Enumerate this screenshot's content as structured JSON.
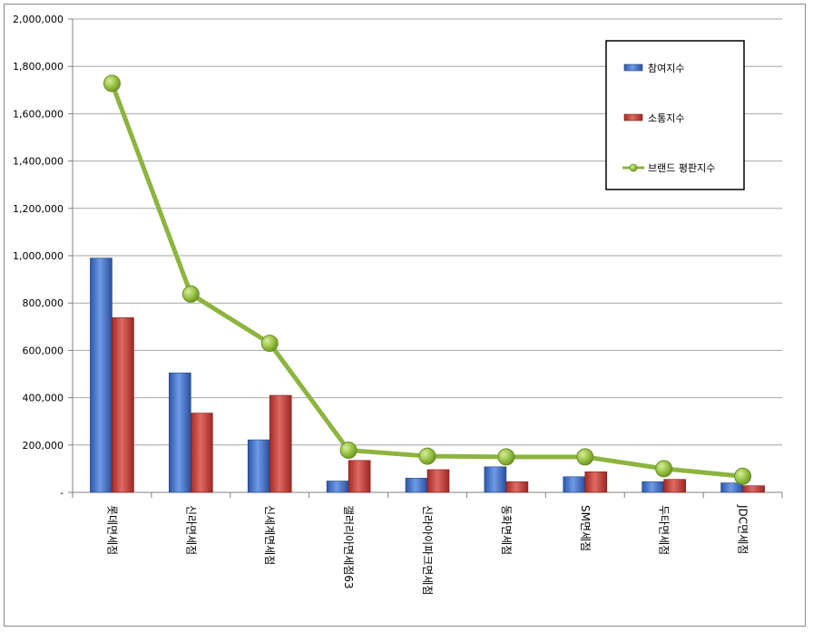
{
  "chart_data": {
    "type": "bar",
    "categories": [
      "롯데면세점",
      "신라면세점",
      "신세계면세점",
      "갤러리아면세점63",
      "신라아이파크면세점",
      "동화면세점",
      "SM면세점",
      "두타면세점",
      "JDC면세점"
    ],
    "series": [
      {
        "name": "참여지수",
        "kind": "bar",
        "color": "#3f6fc9",
        "values": [
          990000,
          505000,
          222000,
          48000,
          60000,
          108000,
          66000,
          45000,
          40000
        ]
      },
      {
        "name": "소통지수",
        "kind": "bar",
        "color": "#c43a34",
        "values": [
          738000,
          335000,
          410000,
          135000,
          96000,
          45000,
          87000,
          55000,
          28000
        ]
      },
      {
        "name": "브랜드 평판지수",
        "kind": "line",
        "color": "#8db43e",
        "values": [
          1728000,
          838000,
          630000,
          178000,
          153000,
          150000,
          150000,
          100000,
          68000
        ]
      }
    ],
    "ylim": [
      0,
      2000000
    ],
    "yticks": [
      0,
      200000,
      400000,
      600000,
      800000,
      1000000,
      1200000,
      1400000,
      1600000,
      1800000,
      2000000
    ],
    "ytick_labels": [
      "-",
      "200,000",
      "400,000",
      "600,000",
      "800,000",
      "1,000,000",
      "1,200,000",
      "1,400,000",
      "1,600,000",
      "1,800,000",
      "2,000,000"
    ],
    "grid": true,
    "legend_position": "top-right"
  }
}
